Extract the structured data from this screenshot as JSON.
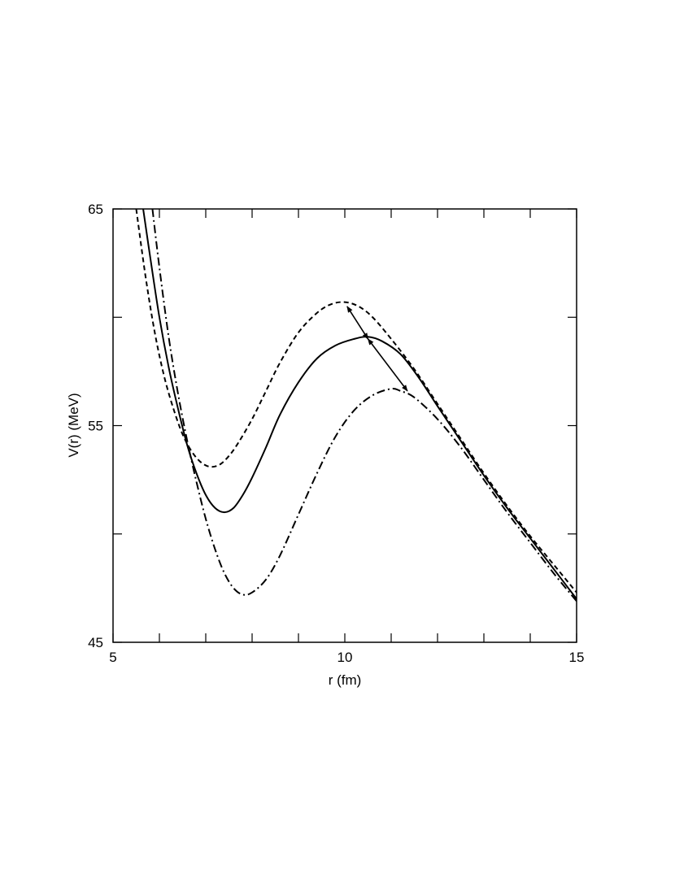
{
  "chart_data": {
    "type": "line",
    "title": "",
    "xlabel": "r (fm)",
    "ylabel": "V(r) (MeV)",
    "xlim": [
      5,
      15
    ],
    "ylim": [
      45,
      65
    ],
    "xticks_labeled": [
      5,
      10,
      15
    ],
    "yticks_labeled": [
      45,
      55,
      65
    ],
    "xticks_minor": [
      6,
      7,
      8,
      9,
      11,
      12,
      13,
      14
    ],
    "yticks_minor": [
      50,
      60
    ],
    "grid": false,
    "legend": "none",
    "series": [
      {
        "style": "solid",
        "color": "#000000",
        "x": [
          5.65,
          5.8,
          6.0,
          6.2,
          6.4,
          6.6,
          6.8,
          7.0,
          7.2,
          7.4,
          7.6,
          7.8,
          8.0,
          8.3,
          8.6,
          9.0,
          9.4,
          9.8,
          10.2,
          10.5,
          10.8,
          11.2,
          11.6,
          12.0,
          12.5,
          13.0,
          13.5,
          14.0,
          14.5,
          15.0
        ],
        "y": [
          65.0,
          62.8,
          60.0,
          57.7,
          55.8,
          54.1,
          52.8,
          51.8,
          51.2,
          51.0,
          51.2,
          51.8,
          52.6,
          54.0,
          55.5,
          57.0,
          58.1,
          58.7,
          59.0,
          59.1,
          58.9,
          58.3,
          57.2,
          55.9,
          54.3,
          52.7,
          51.2,
          49.8,
          48.4,
          47.0
        ]
      },
      {
        "style": "dashed",
        "color": "#000000",
        "x": [
          5.5,
          5.7,
          5.9,
          6.1,
          6.3,
          6.5,
          6.7,
          6.9,
          7.1,
          7.3,
          7.5,
          7.7,
          8.0,
          8.3,
          8.6,
          9.0,
          9.4,
          9.7,
          10.0,
          10.3,
          10.6,
          11.0,
          11.5,
          12.0,
          12.5,
          13.0,
          13.5,
          14.0,
          14.5,
          15.0
        ],
        "y": [
          65.0,
          61.9,
          59.3,
          57.3,
          55.8,
          54.6,
          53.8,
          53.3,
          53.1,
          53.2,
          53.6,
          54.2,
          55.3,
          56.6,
          57.9,
          59.3,
          60.2,
          60.6,
          60.7,
          60.5,
          60.0,
          59.0,
          57.6,
          56.0,
          54.4,
          52.8,
          51.3,
          49.9,
          48.6,
          47.3
        ]
      },
      {
        "style": "dash-dot",
        "color": "#000000",
        "x": [
          5.85,
          6.0,
          6.2,
          6.4,
          6.6,
          6.8,
          7.0,
          7.2,
          7.4,
          7.6,
          7.8,
          8.0,
          8.3,
          8.6,
          9.0,
          9.4,
          9.8,
          10.2,
          10.6,
          11.0,
          11.2,
          11.5,
          12.0,
          12.5,
          13.0,
          13.5,
          14.0,
          14.5,
          15.0
        ],
        "y": [
          65.0,
          62.3,
          59.1,
          56.5,
          54.3,
          52.4,
          50.7,
          49.3,
          48.2,
          47.5,
          47.2,
          47.3,
          47.9,
          49.0,
          50.9,
          52.8,
          54.5,
          55.7,
          56.4,
          56.7,
          56.6,
          56.3,
          55.3,
          54.0,
          52.5,
          51.0,
          49.6,
          48.2,
          46.9
        ]
      }
    ],
    "annotations": [
      {
        "type": "double-arrow",
        "from": [
          10.05,
          60.5
        ],
        "to": [
          10.5,
          59.0
        ]
      },
      {
        "type": "double-arrow",
        "from": [
          10.5,
          59.0
        ],
        "to": [
          11.35,
          56.6
        ]
      }
    ]
  }
}
